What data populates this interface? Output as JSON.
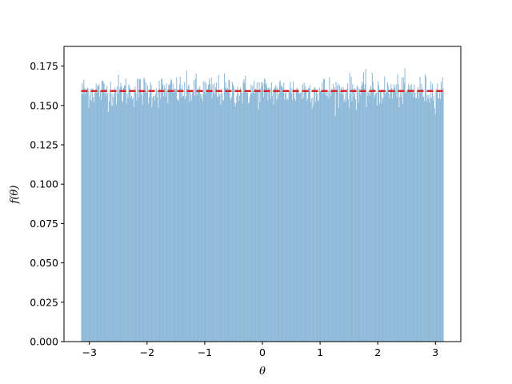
{
  "chart_data": {
    "type": "bar",
    "title": "",
    "xlabel": "θ",
    "ylabel": "f(θ)",
    "xlim": [
      -3.44,
      3.44
    ],
    "ylim": [
      0.0,
      0.1875
    ],
    "x_ticks": [
      -3,
      -2,
      -1,
      0,
      1,
      2,
      3
    ],
    "x_tick_labels": [
      "−3",
      "−2",
      "−1",
      "0",
      "1",
      "2",
      "3"
    ],
    "y_ticks": [
      0.0,
      0.025,
      0.05,
      0.075,
      0.1,
      0.125,
      0.15,
      0.175
    ],
    "y_tick_labels": [
      "0.000",
      "0.025",
      "0.050",
      "0.075",
      "0.100",
      "0.125",
      "0.150",
      "0.175"
    ],
    "grid": false,
    "histogram": {
      "range": [
        -3.14159,
        3.14159
      ],
      "bins": 500,
      "mean_density": 0.1592,
      "density_min": 0.143,
      "density_max": 0.174,
      "color": "#8fbad9"
    },
    "reference_line": {
      "y": 0.1592,
      "x_range": [
        -3.14159,
        3.14159
      ],
      "style": "dashed",
      "color": "#d62728"
    }
  }
}
